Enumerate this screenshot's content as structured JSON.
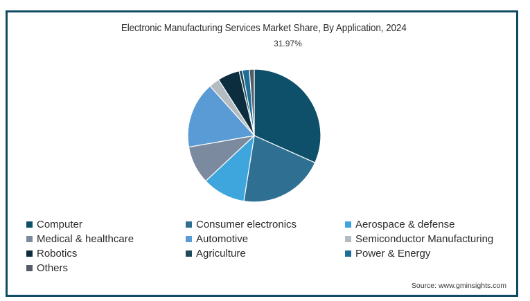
{
  "chart_data": {
    "type": "pie",
    "title": "Electronic Manufacturing Services Market Share, By Application, 2024",
    "start_angle_deg": 0,
    "direction": "clockwise",
    "slices": [
      {
        "label": "Computer",
        "value": 31.97,
        "color": "#0e4f6a",
        "show_label": true,
        "label_text": "31.97%"
      },
      {
        "label": "Consumer electronics",
        "value": 21.0,
        "color": "#2f6f91"
      },
      {
        "label": "Aerospace & defense",
        "value": 10.6,
        "color": "#3ea6dc"
      },
      {
        "label": "Medical & healthcare",
        "value": 9.3,
        "color": "#7b8a9e"
      },
      {
        "label": "Automotive",
        "value": 16.3,
        "color": "#5b9bd5"
      },
      {
        "label": "Semiconductor Manufacturing",
        "value": 2.6,
        "color": "#b4bcc2"
      },
      {
        "label": "Robotics",
        "value": 5.4,
        "color": "#0c2d3d"
      },
      {
        "label": "Agriculture",
        "value": 0.8,
        "color": "#1f4a5a"
      },
      {
        "label": "Power & Energy",
        "value": 1.7,
        "color": "#1e6e99"
      },
      {
        "label": "Others",
        "value": 1.2,
        "color": "#545c66"
      }
    ],
    "legend_position": "bottom",
    "legend_columns": 3
  },
  "source": "Source: www.gminsights.com",
  "frame_color": "#0f4c64"
}
